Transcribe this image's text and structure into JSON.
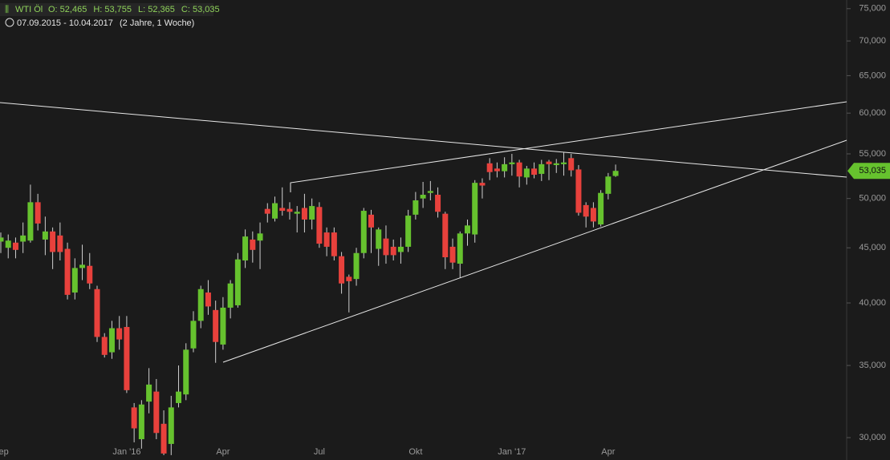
{
  "chart_data": {
    "type": "candlestick",
    "instrument": "WTI Öl",
    "ohlc_labels": [
      "O: 52,465",
      "H: 53,755",
      "L: 52,365",
      "C: 53,035"
    ],
    "date_range": "07.09.2015 - 10.04.2017",
    "period": "(2 Jahre, 1 Woche)",
    "categories": [
      "Sep",
      null,
      null,
      null,
      null,
      null,
      null,
      null,
      null,
      null,
      null,
      null,
      null,
      null,
      null,
      null,
      null,
      "Jan '16",
      null,
      null,
      null,
      null,
      null,
      null,
      null,
      null,
      null,
      null,
      null,
      null,
      "Apr",
      null,
      null,
      null,
      null,
      null,
      null,
      null,
      null,
      null,
      null,
      null,
      null,
      "Jul",
      null,
      null,
      null,
      null,
      null,
      null,
      null,
      null,
      null,
      null,
      null,
      null,
      "Okt",
      null,
      null,
      null,
      null,
      null,
      null,
      null,
      null,
      null,
      null,
      null,
      null,
      "Jan '17",
      null,
      null,
      null,
      null,
      null,
      null,
      null,
      null,
      null,
      null,
      null,
      null,
      "Apr",
      null
    ],
    "open": [
      45.6,
      45.0,
      45.5,
      45.6,
      45.7,
      49.6,
      45.8,
      46.6,
      46.2,
      44.9,
      40.9,
      43.1,
      43.3,
      41.2,
      37.2,
      36.0,
      37.9,
      38.0,
      32.0,
      29.9,
      32.4,
      33.1,
      30.9,
      29.6,
      32.3,
      32.9,
      36.3,
      38.5,
      40.9,
      39.4,
      36.6,
      39.6,
      39.8,
      43.8,
      45.8,
      45.7,
      48.9,
      47.9,
      49.0,
      48.9,
      48.4,
      49.0,
      47.8,
      49.1,
      46.5,
      46.5,
      44.2,
      42.3,
      42.1,
      44.5,
      48.3,
      44.9,
      45.9,
      45.1,
      44.6,
      45.1,
      48.3,
      50.0,
      50.6,
      50.4,
      48.4,
      45.1,
      43.5,
      46.4,
      46.3,
      51.7,
      53.9,
      53.3,
      53.0,
      53.8,
      54.0,
      52.3,
      53.3,
      52.7,
      54.1,
      53.7,
      53.8,
      54.5,
      53.2,
      49.3,
      49.0,
      47.3,
      50.5,
      52.465
    ],
    "high": [
      46.5,
      46.3,
      46.0,
      47.5,
      51.5,
      50.5,
      48.1,
      47.0,
      47.5,
      45.5,
      44.0,
      45.3,
      44.5,
      41.5,
      37.5,
      38.5,
      38.9,
      38.9,
      32.3,
      32.5,
      34.8,
      34.0,
      31.8,
      32.8,
      35.0,
      36.7,
      39.3,
      41.5,
      42.0,
      40.2,
      40.5,
      42.0,
      44.5,
      46.8,
      46.6,
      47.5,
      49.5,
      50.2,
      51.2,
      49.6,
      49.2,
      50.5,
      50.0,
      49.6,
      47.0,
      47.0,
      44.6,
      42.5,
      45.0,
      49.0,
      48.8,
      47.0,
      47.2,
      45.8,
      46.0,
      48.8,
      50.7,
      51.8,
      51.9,
      51.2,
      48.6,
      45.9,
      46.6,
      47.8,
      52.0,
      52.2,
      54.5,
      54.0,
      54.6,
      55.0,
      54.3,
      53.6,
      54.0,
      54.3,
      54.3,
      54.4,
      55.2,
      55.0,
      53.7,
      49.6,
      49.6,
      50.9,
      52.8,
      53.755
    ],
    "low": [
      44.5,
      44.0,
      44.0,
      44.5,
      45.5,
      46.7,
      44.3,
      43.0,
      43.8,
      40.3,
      40.3,
      42.0,
      41.2,
      36.8,
      35.6,
      35.5,
      36.2,
      33.0,
      29.7,
      29.3,
      31.6,
      29.9,
      28.9,
      28.9,
      32.0,
      32.5,
      36.0,
      37.9,
      39.0,
      35.2,
      36.2,
      38.7,
      39.6,
      43.1,
      43.6,
      43.0,
      47.5,
      47.6,
      48.2,
      47.8,
      46.5,
      46.5,
      46.8,
      45.0,
      44.2,
      43.8,
      40.8,
      39.2,
      41.5,
      44.0,
      44.5,
      43.3,
      43.5,
      43.8,
      43.5,
      44.6,
      47.8,
      49.0,
      49.8,
      48.0,
      43.0,
      43.0,
      42.2,
      45.2,
      45.5,
      50.0,
      52.0,
      52.3,
      52.3,
      52.5,
      51.2,
      51.5,
      52.2,
      51.9,
      52.0,
      52.8,
      52.5,
      52.4,
      48.2,
      47.0,
      47.0,
      47.1,
      49.9,
      52.365
    ],
    "close": [
      46.0,
      45.7,
      44.8,
      46.2,
      49.6,
      47.4,
      46.6,
      44.6,
      44.6,
      40.7,
      43.1,
      43.4,
      41.7,
      37.2,
      35.8,
      37.9,
      37.0,
      33.2,
      30.6,
      32.2,
      33.6,
      30.3,
      29.0,
      32.0,
      33.1,
      36.2,
      38.5,
      41.2,
      39.7,
      36.8,
      39.6,
      41.7,
      43.9,
      46.1,
      44.8,
      46.4,
      48.4,
      49.5,
      48.7,
      48.6,
      48.6,
      47.8,
      49.2,
      45.4,
      45.1,
      44.2,
      41.7,
      41.9,
      44.5,
      48.7,
      47.0,
      46.8,
      44.3,
      44.3,
      45.1,
      48.2,
      49.8,
      50.4,
      50.8,
      48.6,
      44.1,
      43.6,
      46.4,
      47.2,
      51.7,
      51.4,
      52.9,
      53.0,
      53.8,
      54.0,
      52.4,
      53.3,
      52.6,
      53.8,
      53.8,
      53.9,
      54.0,
      53.1,
      48.5,
      48.1,
      47.6,
      50.6,
      52.4,
      53.035
    ],
    "up_color": "#66c22e",
    "down_color": "#e8413c",
    "log_scale": true,
    "ylim": [
      28.6,
      76.4
    ],
    "yticks": [
      {
        "value": 30,
        "label": "30,000"
      },
      {
        "value": 35,
        "label": "35,000"
      },
      {
        "value": 40,
        "label": "40,000"
      },
      {
        "value": 45,
        "label": "45,000"
      },
      {
        "value": 50,
        "label": "50,000"
      },
      {
        "value": 55,
        "label": "55,000"
      },
      {
        "value": 60,
        "label": "60,000"
      },
      {
        "value": 65,
        "label": "65,000"
      },
      {
        "value": 70,
        "label": "70,000"
      },
      {
        "value": 75,
        "label": "75,000"
      }
    ],
    "price_tag": {
      "value": 53.035,
      "label": "53,035"
    }
  }
}
